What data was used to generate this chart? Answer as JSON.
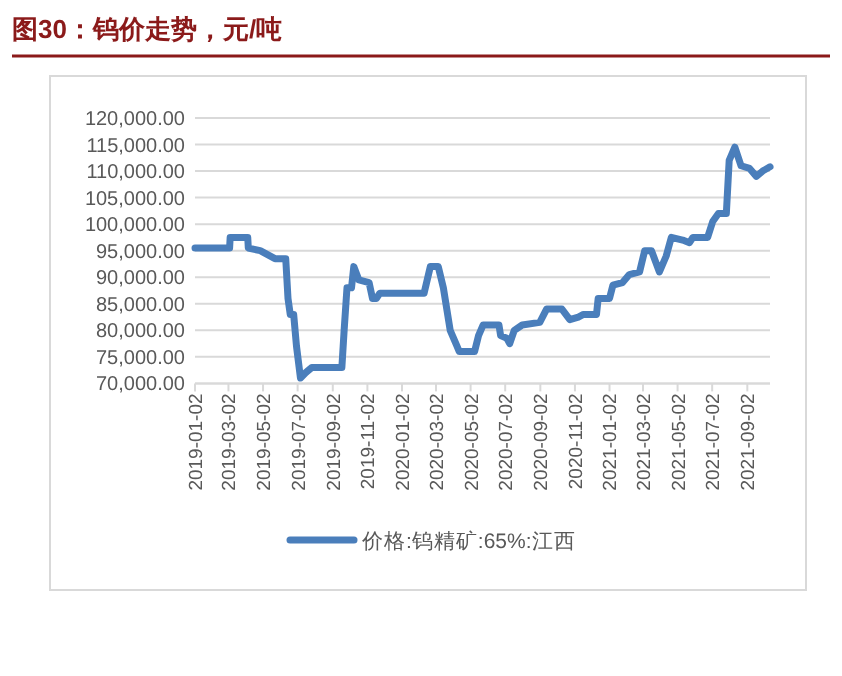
{
  "chart_data": {
    "type": "line",
    "title": "图30：钨价走势，元/吨",
    "x": [
      "2019-01-02",
      "2019-03-04",
      "2019-03-05",
      "2019-04-05",
      "2019-04-06",
      "2019-04-27",
      "2019-05-23",
      "2019-06-11",
      "2019-06-15",
      "2019-06-19",
      "2019-06-25",
      "2019-06-30",
      "2019-07-07",
      "2019-07-16",
      "2019-07-27",
      "2019-09-18",
      "2019-09-22",
      "2019-09-27",
      "2019-10-05",
      "2019-10-09",
      "2019-10-18",
      "2019-11-05",
      "2019-11-11",
      "2019-11-18",
      "2019-11-24",
      "2020-02-10",
      "2020-02-21",
      "2020-03-06",
      "2020-03-15",
      "2020-03-27",
      "2020-04-08",
      "2020-04-12",
      "2020-05-09",
      "2020-05-16",
      "2020-05-24",
      "2020-06-21",
      "2020-06-24",
      "2020-07-05",
      "2020-07-10",
      "2020-07-18",
      "2020-08-01",
      "2020-09-01",
      "2020-09-13",
      "2020-10-10",
      "2020-10-24",
      "2020-11-08",
      "2020-11-17",
      "2020-12-10",
      "2020-12-13",
      "2021-01-02",
      "2021-01-08",
      "2021-01-25",
      "2021-02-06",
      "2021-02-24",
      "2021-03-05",
      "2021-03-17",
      "2021-03-31",
      "2021-04-12",
      "2021-04-21",
      "2021-05-11",
      "2021-05-23",
      "2021-05-29",
      "2021-06-24",
      "2021-07-03",
      "2021-07-13",
      "2021-07-27",
      "2021-08-01",
      "2021-08-11",
      "2021-08-22",
      "2021-09-06",
      "2021-09-18",
      "2021-09-29",
      "2021-10-12"
    ],
    "series": [
      {
        "name": "价格:钨精矿:65%:江西",
        "color": "#4a7ebb",
        "values": [
          95500,
          95500,
          97500,
          97500,
          95500,
          95000,
          93500,
          93500,
          86000,
          83000,
          83000,
          77000,
          71000,
          72000,
          73000,
          73000,
          80000,
          88000,
          88000,
          92000,
          89500,
          89000,
          86000,
          86000,
          87000,
          87000,
          92000,
          92000,
          88000,
          80000,
          77000,
          76000,
          76000,
          79000,
          81000,
          81000,
          79000,
          78500,
          77500,
          80000,
          81000,
          81500,
          84000,
          84000,
          82000,
          82500,
          83000,
          83000,
          86000,
          86000,
          88500,
          89000,
          90500,
          91000,
          95000,
          95000,
          91000,
          94000,
          97500,
          97000,
          96500,
          97500,
          97500,
          100500,
          102000,
          102000,
          112000,
          114500,
          111000,
          110500,
          109000,
          110000,
          110800
        ]
      }
    ],
    "xlim": [
      "2019-01-02",
      "2021-10-12"
    ],
    "xticks": [
      {
        "value": "2019-01-02",
        "label": "2019-01-02"
      },
      {
        "value": "2019-03-02",
        "label": "2019-03-02"
      },
      {
        "value": "2019-05-02",
        "label": "2019-05-02"
      },
      {
        "value": "2019-07-02",
        "label": "2019-07-02"
      },
      {
        "value": "2019-09-02",
        "label": "2019-09-02"
      },
      {
        "value": "2019-11-02",
        "label": "2019-11-02"
      },
      {
        "value": "2020-01-02",
        "label": "2020-01-02"
      },
      {
        "value": "2020-03-02",
        "label": "2020-03-02"
      },
      {
        "value": "2020-05-02",
        "label": "2020-05-02"
      },
      {
        "value": "2020-07-02",
        "label": "2020-07-02"
      },
      {
        "value": "2020-09-02",
        "label": "2020-09-02"
      },
      {
        "value": "2020-11-02",
        "label": "2020-11-02"
      },
      {
        "value": "2021-01-02",
        "label": "2021-01-02"
      },
      {
        "value": "2021-03-02",
        "label": "2021-03-02"
      },
      {
        "value": "2021-05-02",
        "label": "2021-05-02"
      },
      {
        "value": "2021-07-02",
        "label": "2021-07-02"
      },
      {
        "value": "2021-09-02",
        "label": "2021-09-02"
      }
    ],
    "ylim": [
      70000,
      120000
    ],
    "yticks": [
      {
        "value": 70000,
        "label": "70,000.00"
      },
      {
        "value": 75000,
        "label": "75,000.00"
      },
      {
        "value": 80000,
        "label": "80,000.00"
      },
      {
        "value": 85000,
        "label": "85,000.00"
      },
      {
        "value": 90000,
        "label": "90,000.00"
      },
      {
        "value": 95000,
        "label": "95,000.00"
      },
      {
        "value": 100000,
        "label": "100,000.00"
      },
      {
        "value": 105000,
        "label": "105,000.00"
      },
      {
        "value": 110000,
        "label": "110,000.00"
      },
      {
        "value": 115000,
        "label": "115,000.00"
      },
      {
        "value": 120000,
        "label": "120,000.00"
      }
    ],
    "grid": "y",
    "legend": "bottom",
    "marker": "none",
    "line_style": "solid"
  }
}
